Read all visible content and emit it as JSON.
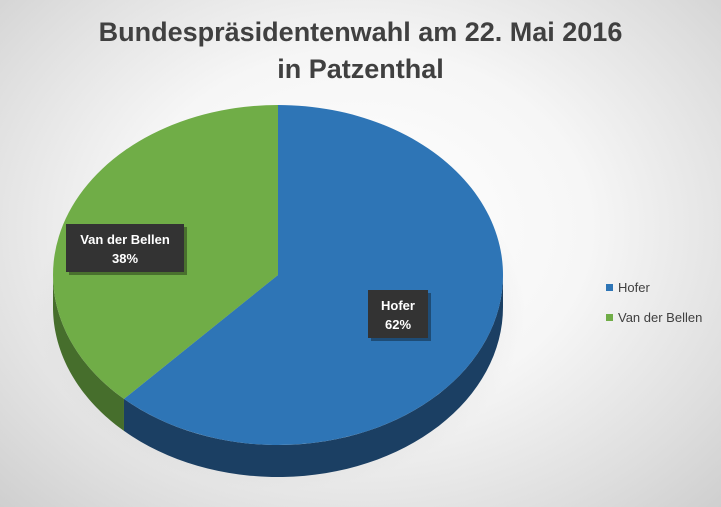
{
  "chart_data": {
    "type": "pie",
    "title_lines": [
      "Bundespräsidentenwahl am 22. Mai 2016",
      "in Patzenthal"
    ],
    "categories": [
      "Hofer",
      "Van der Bellen"
    ],
    "values": [
      62,
      38
    ],
    "labels": [
      {
        "name": "Hofer",
        "value_text": "62%"
      },
      {
        "name": "Van der Bellen",
        "value_text": "38%"
      }
    ],
    "colors": [
      "#2e75b6",
      "#70ad47"
    ],
    "side_colors": [
      "#1b3f63",
      "#466e2c"
    ],
    "legend": {
      "placement": "right",
      "items": [
        {
          "label": "Hofer",
          "color": "#2e75b6"
        },
        {
          "label": "Van der Bellen",
          "color": "#70ad47"
        }
      ]
    },
    "style": "3d"
  }
}
